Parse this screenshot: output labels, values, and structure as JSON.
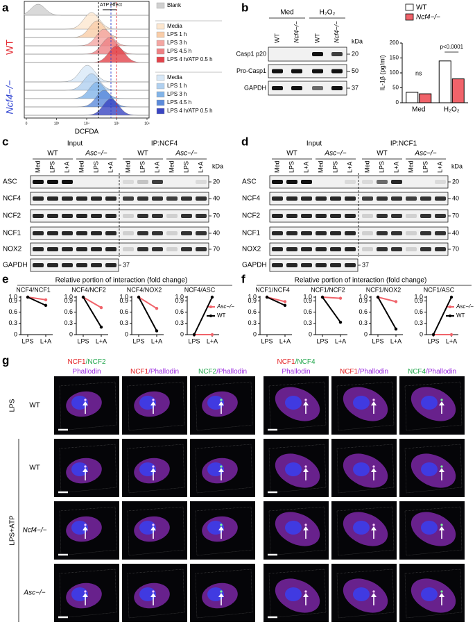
{
  "panels": {
    "a": {
      "label": "a",
      "annotation": "ATP effect",
      "xlabel": "DCFDA",
      "xticks": [
        "0",
        "10³",
        "10⁴",
        "10⁵",
        "10⁶"
      ],
      "groups": [
        {
          "text": "WT",
          "color": "#e3262e"
        },
        {
          "text": "Ncf4−/−",
          "color": "#2b3fd0"
        }
      ],
      "legend": [
        {
          "text": "Blank",
          "color": "#d0d0d0"
        },
        {
          "text": "Media",
          "color": "#fde7cf"
        },
        {
          "text": "LPS 1 h",
          "color": "#f9cda8"
        },
        {
          "text": "LPS 3 h",
          "color": "#f4a6a2"
        },
        {
          "text": "LPS 4.5 h",
          "color": "#ee8184"
        },
        {
          "text": "LPS 4 h/ATP 0.5 h",
          "color": "#e2434b"
        },
        {
          "text": "Media",
          "color": "#d8e8f7"
        },
        {
          "text": "LPS 1 h",
          "color": "#b0d0f0"
        },
        {
          "text": "LPS 3 h",
          "color": "#82b4e8"
        },
        {
          "text": "LPS 4.5 h",
          "color": "#5c8bdb"
        },
        {
          "text": "LPS 4 h/ATP 0.5 h",
          "color": "#3a46c2"
        }
      ]
    },
    "b": {
      "label": "b",
      "conditions": [
        "Med",
        "H₂O₂"
      ],
      "lanes": [
        "WT",
        "Ncf4−/−",
        "WT",
        "Ncf4−/−"
      ],
      "rows": [
        "Casp1 p20",
        "Pro-Casp1",
        "GAPDH"
      ],
      "kda_unit": "kDa",
      "kda": [
        "20",
        "50",
        "37"
      ]
    },
    "c": {
      "label": "c",
      "headers": [
        "Input",
        "IP:NCF4"
      ],
      "groups": [
        "WT",
        "Asc−/−",
        "WT",
        "Asc−/−"
      ],
      "lanes": [
        "Med",
        "LPS",
        "L+A",
        "Med",
        "LPS",
        "L+A",
        "Med",
        "LPS",
        "L+A",
        "Med",
        "LPS",
        "L+A"
      ],
      "rows": [
        "ASC",
        "NCF4",
        "NCF2",
        "NCF1",
        "NOX2",
        "GAPDH"
      ],
      "kda_unit": "kDa",
      "kda": [
        "20",
        "40",
        "70",
        "40",
        "70",
        "37"
      ]
    },
    "d": {
      "label": "d",
      "headers": [
        "Input",
        "IP:NCF1"
      ],
      "groups": [
        "WT",
        "Asc−/−",
        "WT",
        "Asc−/−"
      ],
      "lanes": [
        "Med",
        "LPS",
        "L+A",
        "Med",
        "LPS",
        "L+A",
        "Med",
        "LPS",
        "L+A",
        "Med",
        "LPS",
        "L+A"
      ],
      "rows": [
        "ASC",
        "NCF4",
        "NCF2",
        "NCF1",
        "NOX2",
        "GAPDH"
      ],
      "kda_unit": "kDa",
      "kda": [
        "20",
        "40",
        "70",
        "40",
        "70",
        "37"
      ]
    },
    "e": {
      "label": "e",
      "title": "Relative portion of interaction (fold change)"
    },
    "f": {
      "label": "f",
      "title": "Relative portion of interaction (fold change)"
    },
    "g": {
      "label": "g",
      "headers": [
        [
          [
            {
              "text": "NCF1",
              "color": "#e31a1c"
            },
            {
              "text": "/NCF2",
              "color": "#1fa64a"
            }
          ],
          [
            {
              "text": "Phallodin",
              "color": "#9b2be0"
            }
          ]
        ],
        [
          [
            {
              "text": "NCF1",
              "color": "#e31a1c"
            },
            {
              "text": "/Phallodin",
              "color": "#9b2be0"
            }
          ]
        ],
        [
          [
            {
              "text": "NCF2",
              "color": "#1fa64a"
            },
            {
              "text": "/Phallodin",
              "color": "#9b2be0"
            }
          ]
        ],
        [
          [
            {
              "text": "NCF1",
              "color": "#e31a1c"
            },
            {
              "text": "/NCF4",
              "color": "#1fa64a"
            }
          ],
          [
            {
              "text": "Phallodin",
              "color": "#9b2be0"
            }
          ]
        ],
        [
          [
            {
              "text": "NCF1",
              "color": "#e31a1c"
            },
            {
              "text": "/Phallodin",
              "color": "#9b2be0"
            }
          ]
        ],
        [
          [
            {
              "text": "NCF4",
              "color": "#1fa64a"
            },
            {
              "text": "/Phallodin",
              "color": "#9b2be0"
            }
          ]
        ]
      ],
      "conditions": [
        "LPS",
        "LPS+ATP"
      ],
      "genotypes": [
        "WT",
        "WT",
        "Ncf4−/−",
        "Asc−/−"
      ]
    }
  },
  "chart_data": [
    {
      "type": "bar",
      "ylabel": "IL-1β (pg/ml)",
      "categories": [
        "Med",
        "H₂O₂"
      ],
      "ylim": [
        0,
        200
      ],
      "yticks": [
        0,
        50,
        100,
        150,
        200
      ],
      "series": [
        {
          "name": "WT",
          "color": "#ffffff",
          "values": [
            35,
            140
          ]
        },
        {
          "name": "Ncf4−/−",
          "color": "#f0636a",
          "values": [
            30,
            80
          ]
        }
      ],
      "annotations": [
        "ns",
        "p<0.0001"
      ]
    },
    {
      "type": "line",
      "subtitle": "NCF4/NCF1",
      "categories": [
        "LPS",
        "L+A"
      ],
      "ylim": [
        0,
        1
      ],
      "yticks": [
        0,
        0.3,
        0.6,
        0.9,
        {
          "value": 1,
          "label": "1.0"
        }
      ],
      "series": [
        {
          "color": "#f0636a",
          "values": [
            1,
            0.93
          ]
        },
        {
          "color": "#000000",
          "values": [
            1,
            0.78
          ]
        }
      ]
    },
    {
      "type": "line",
      "subtitle": "NCF4/NCF2",
      "categories": [
        "LPS",
        "L+A"
      ],
      "ylim": [
        0,
        1
      ],
      "yticks": [
        0,
        0.3,
        0.6,
        0.9,
        {
          "value": 1,
          "label": "1.0"
        }
      ],
      "series": [
        {
          "color": "#f0636a",
          "values": [
            1,
            0.72
          ]
        },
        {
          "color": "#000000",
          "values": [
            1,
            0.2
          ]
        }
      ]
    },
    {
      "type": "line",
      "subtitle": "NCF4/NOX2",
      "categories": [
        "LPS",
        "L+A"
      ],
      "ylim": [
        0,
        1
      ],
      "yticks": [
        0,
        0.3,
        0.6,
        0.9,
        {
          "value": 1,
          "label": "1.0"
        }
      ],
      "series": [
        {
          "color": "#f0636a",
          "values": [
            1,
            0.7
          ]
        },
        {
          "color": "#000000",
          "values": [
            1,
            0.1
          ]
        }
      ]
    },
    {
      "type": "line",
      "subtitle": "NCF4/ASC",
      "categories": [
        "LPS",
        "L+A"
      ],
      "ylim": [
        0,
        1
      ],
      "yticks": [
        0,
        0.3,
        0.6,
        0.9,
        {
          "value": 1,
          "label": "1.0"
        }
      ],
      "series": [
        {
          "name": "Asc−/−",
          "color": "#f0636a",
          "values": [
            0,
            0
          ]
        },
        {
          "name": "WT",
          "color": "#000000",
          "values": [
            0,
            1
          ]
        }
      ]
    },
    {
      "type": "line",
      "subtitle": "NCF1/NCF4",
      "categories": [
        "LPS",
        "L+A"
      ],
      "ylim": [
        0,
        1
      ],
      "yticks": [
        0,
        0.3,
        0.6,
        0.9,
        {
          "value": 1,
          "label": "1.0"
        }
      ],
      "series": [
        {
          "color": "#f0636a",
          "values": [
            1,
            0.88
          ]
        },
        {
          "color": "#000000",
          "values": [
            1,
            0.78
          ]
        }
      ]
    },
    {
      "type": "line",
      "subtitle": "NCF1/NCF2",
      "categories": [
        "LPS",
        "L+A"
      ],
      "ylim": [
        0,
        1
      ],
      "yticks": [
        0,
        0.3,
        0.6,
        0.9,
        {
          "value": 1,
          "label": "1.0"
        }
      ],
      "series": [
        {
          "color": "#f0636a",
          "values": [
            1,
            0.97
          ]
        },
        {
          "color": "#000000",
          "values": [
            1,
            0.33
          ]
        }
      ]
    },
    {
      "type": "line",
      "subtitle": "NCF1/NOX2",
      "categories": [
        "LPS",
        "L+A"
      ],
      "ylim": [
        0,
        1
      ],
      "yticks": [
        0,
        0.3,
        0.6,
        0.9,
        {
          "value": 1,
          "label": "1.0"
        }
      ],
      "series": [
        {
          "color": "#f0636a",
          "values": [
            1,
            0.88
          ]
        },
        {
          "color": "#000000",
          "values": [
            1,
            0.15
          ]
        }
      ]
    },
    {
      "type": "line",
      "subtitle": "NCF1/ASC",
      "categories": [
        "LPS",
        "L+A"
      ],
      "ylim": [
        0,
        1
      ],
      "yticks": [
        0,
        0.3,
        0.6,
        0.9,
        {
          "value": 1,
          "label": "1.0"
        }
      ],
      "series": [
        {
          "name": "Asc−/−",
          "color": "#f0636a",
          "values": [
            0,
            0
          ]
        },
        {
          "name": "WT",
          "color": "#000000",
          "values": [
            0,
            1
          ]
        }
      ]
    }
  ]
}
